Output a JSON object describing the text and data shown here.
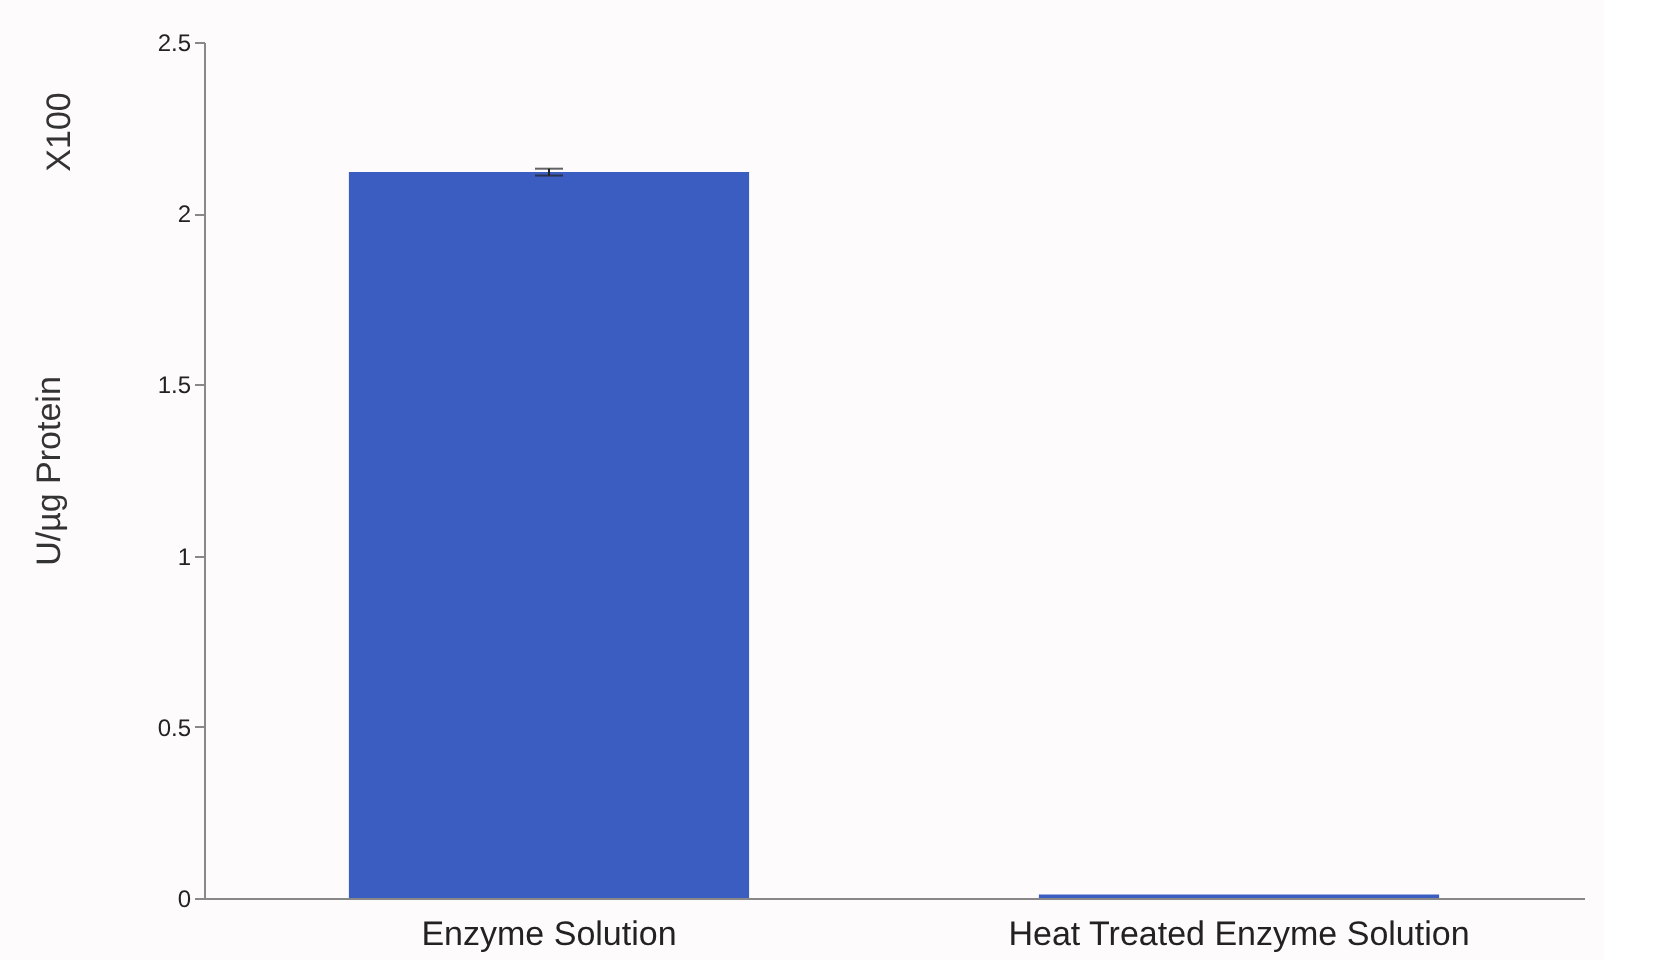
{
  "chart_data": {
    "type": "bar",
    "categories": [
      "Enzyme Solution",
      "Heat Treated Enzyme Solution"
    ],
    "values": [
      2.12,
      0.01
    ],
    "errors": [
      0.01,
      null
    ],
    "color": "#3b5cc0",
    "ylabel": "U/µg Protein",
    "annotations": [
      "X100"
    ],
    "ylim": [
      0,
      2.5
    ],
    "yticks": [
      0,
      0.5,
      1,
      1.5,
      2,
      2.5
    ],
    "grid": false
  }
}
